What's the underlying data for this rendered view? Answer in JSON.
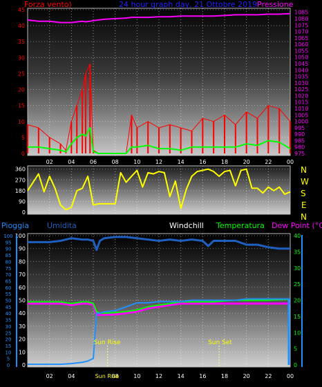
{
  "header": {
    "left_label": "Forza vento)",
    "center_label": "24 hour graph day, 21 Ottobre 2019",
    "right_label": "Pressione"
  },
  "legend2": {
    "pioggia": "Pioggia",
    "umidita": "Umidita",
    "windchill": "Windchill",
    "temperatura": "Temperatura",
    "dewpoint": "Dew Point (°C)"
  },
  "compass": [
    "N",
    "W",
    "S",
    "E",
    "N"
  ],
  "colors": {
    "wind": "#ff0000",
    "gust_avg": "#00ff00",
    "pressure": "#ff00ff",
    "direction": "#ffff00",
    "rain": "#1e90ff",
    "humidity": "#1f5fbf",
    "temperature": "#00ff00",
    "dewpoint": "#ff00ff",
    "windchill": "#ffffff"
  },
  "chart_data": [
    {
      "type": "line",
      "title": "24 hour graph day, 21 Ottobre 2019",
      "x_tick_labels": [
        "02",
        "04",
        "06",
        "08",
        "10",
        "12",
        "14",
        "16",
        "18",
        "20",
        "22",
        "00"
      ],
      "y_left_label": "Forza vento)",
      "y_left_ticks": [
        0,
        5,
        10,
        15,
        20,
        25,
        30,
        35,
        40,
        45
      ],
      "y_left_lim": [
        0,
        45
      ],
      "y_right_label": "Pressione",
      "y_right_ticks": [
        975,
        980,
        985,
        990,
        995,
        1000,
        1005,
        1010,
        1015,
        1020,
        1025,
        1030,
        1035,
        1040,
        1045,
        1050,
        1055,
        1060,
        1065,
        1070,
        1075,
        1080,
        1085
      ],
      "y_right_lim": [
        975,
        1087
      ],
      "grid": true,
      "x_hours": [
        0,
        1,
        2,
        3,
        3.5,
        4,
        4.5,
        5,
        5.3,
        5.7,
        6,
        6.5,
        7,
        8,
        9,
        9.5,
        10,
        11,
        12,
        13,
        14,
        15,
        16,
        17,
        18,
        19,
        20,
        21,
        22,
        23,
        24
      ],
      "series": [
        {
          "name": "Pressione",
          "axis": "right",
          "values": [
            1079,
            1078,
            1078,
            1077,
            1077,
            1077,
            1077.5,
            1078,
            1077.5,
            1078,
            1078.5,
            1079,
            1079.5,
            1080,
            1080.5,
            1081,
            1081,
            1081,
            1081.5,
            1081.5,
            1082,
            1082,
            1082,
            1082,
            1082.5,
            1083,
            1083,
            1083,
            1083.5,
            1083.5,
            1084
          ]
        },
        {
          "axis": "left",
          "values": [
            9,
            8,
            5,
            3,
            1,
            10,
            15,
            20,
            25,
            28,
            1,
            0,
            0,
            0,
            0,
            12,
            8,
            10,
            8,
            9,
            8,
            7,
            11,
            10,
            12,
            9,
            13,
            11,
            15,
            14,
            10
          ]
        },
        {
          "axis": "left",
          "values": [
            2,
            2,
            1.5,
            1,
            0.5,
            3,
            5,
            6,
            5.5,
            8,
            0.5,
            0,
            0,
            0,
            0,
            2,
            2,
            2.5,
            1.5,
            1.5,
            1,
            2,
            2,
            2,
            2,
            2,
            3,
            2.5,
            4,
            3.5,
            1.5
          ]
        }
      ]
    },
    {
      "type": "line",
      "y_ticks": [
        0,
        90,
        180,
        270,
        360
      ],
      "y_lim": [
        0,
        370
      ],
      "grid": true,
      "x_hours": [
        0,
        0.5,
        1,
        1.5,
        2,
        2.5,
        3,
        3.5,
        4,
        4.5,
        5,
        5.5,
        6,
        6.5,
        7,
        7.5,
        8,
        8.5,
        9,
        9.5,
        10,
        10.5,
        11,
        11.5,
        12,
        12.5,
        13,
        13.5,
        14,
        14.5,
        15,
        15.5,
        16,
        16.5,
        17,
        17.5,
        18,
        18.5,
        19,
        19.5,
        20,
        20.5,
        21,
        21.5,
        22,
        22.5,
        23,
        23.5,
        24
      ],
      "values": [
        180,
        250,
        320,
        170,
        300,
        200,
        60,
        20,
        40,
        180,
        200,
        300,
        60,
        70,
        70,
        70,
        70,
        330,
        250,
        300,
        350,
        210,
        330,
        320,
        340,
        330,
        130,
        260,
        30,
        190,
        300,
        340,
        350,
        360,
        340,
        300,
        340,
        350,
        220,
        350,
        360,
        200,
        200,
        160,
        210,
        180,
        210,
        150,
        170
      ]
    },
    {
      "type": "line",
      "x_tick_labels": [
        "02",
        "04",
        "06",
        "08",
        "10",
        "12",
        "14",
        "16",
        "18",
        "20",
        "22",
        "00"
      ],
      "y_left_label": "Pioggia",
      "y_left_ticks": [
        0,
        5,
        10,
        15,
        20,
        25,
        30,
        35,
        40,
        45,
        50,
        55,
        60,
        65,
        70,
        75,
        80,
        85,
        90,
        95,
        100
      ],
      "y_left_lim": [
        0,
        100
      ],
      "y_right_ticks": [
        0,
        5,
        10,
        15,
        20,
        25,
        30,
        35,
        40
      ],
      "y_right_lim": [
        0,
        40
      ],
      "grid": true,
      "annotations": [
        {
          "text": "Sun Rise",
          "x_hour": 7.3
        },
        {
          "text": "Sun Set",
          "x_hour": 17.5
        }
      ],
      "x_hours": [
        0,
        1,
        2,
        3,
        4,
        5,
        5.5,
        6,
        6.3,
        6.6,
        7,
        8,
        9,
        10,
        11,
        12,
        13,
        14,
        15,
        16,
        16.5,
        17,
        18,
        19,
        20,
        21,
        22,
        23,
        24
      ],
      "series": [
        {
          "name": "Umidita",
          "axis": "left",
          "values": [
            95,
            95,
            95,
            96,
            98,
            97,
            97,
            96,
            89,
            96,
            98,
            99,
            99,
            98,
            97,
            96,
            97,
            96,
            97,
            96,
            92,
            96,
            96,
            96,
            93,
            93,
            91,
            90,
            90
          ]
        },
        {
          "name": "Temperatura",
          "axis": "right",
          "values": [
            19.5,
            19.5,
            19.5,
            19.5,
            19,
            19.5,
            19.5,
            19,
            16.5,
            16,
            16,
            16.2,
            16.5,
            17,
            18,
            18.5,
            19,
            19.5,
            19.5,
            19.5,
            19.5,
            19.5,
            19.8,
            20,
            20,
            20,
            20,
            20.2,
            20.3
          ]
        },
        {
          "name": "Dew Point (°C)",
          "axis": "right",
          "values": [
            19,
            19,
            19,
            19,
            18.5,
            19,
            19,
            18.5,
            15.5,
            15.5,
            15.5,
            15.6,
            16,
            16.5,
            17.5,
            18,
            18.5,
            19,
            19,
            19,
            19,
            19,
            19,
            19,
            19,
            19,
            19,
            19,
            19
          ]
        },
        {
          "name": "Pioggia",
          "axis": "left",
          "values": [
            0.5,
            0.5,
            0.5,
            0.5,
            1,
            2,
            3,
            5,
            40,
            40,
            41,
            42,
            45,
            48,
            48,
            49,
            49,
            49,
            50,
            50,
            50,
            50,
            50,
            50,
            51,
            51,
            51,
            51,
            51
          ]
        }
      ]
    }
  ]
}
